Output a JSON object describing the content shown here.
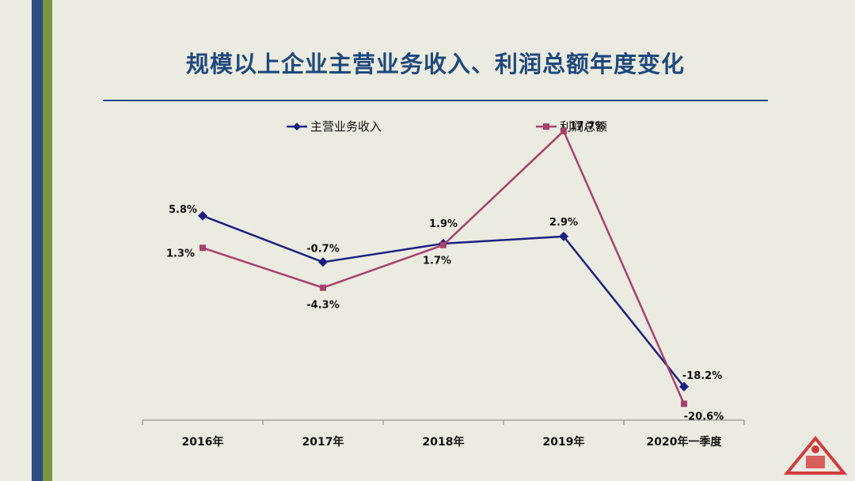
{
  "title": "规模以上企业主营业务收入、利润总额年度变化",
  "colors": {
    "revenue": "#1c1f80",
    "profit": "#a6416c",
    "accent_blue": "#2b4c7e",
    "accent_green": "#7a9645"
  },
  "chart_data": {
    "type": "line",
    "title": "规模以上企业主营业务收入、利润总额年度变化",
    "categories": [
      "2016年",
      "2017年",
      "2018年",
      "2019年",
      "2020年一季度"
    ],
    "series": [
      {
        "name": "主营业务收入",
        "values": [
          5.8,
          -0.7,
          1.9,
          2.9,
          -18.2
        ],
        "labels": [
          "5.8%",
          "-0.7%",
          "1.9%",
          "2.9%",
          "-18.2%"
        ]
      },
      {
        "name": "利润总额",
        "values": [
          1.3,
          -4.3,
          1.7,
          17.7,
          -20.6
        ],
        "labels": [
          "1.3%",
          "-4.3%",
          "1.7%",
          "17.7%",
          "-20.6%"
        ]
      }
    ],
    "ylim": [
      -25,
      25
    ],
    "legend": "top",
    "grid": false
  }
}
